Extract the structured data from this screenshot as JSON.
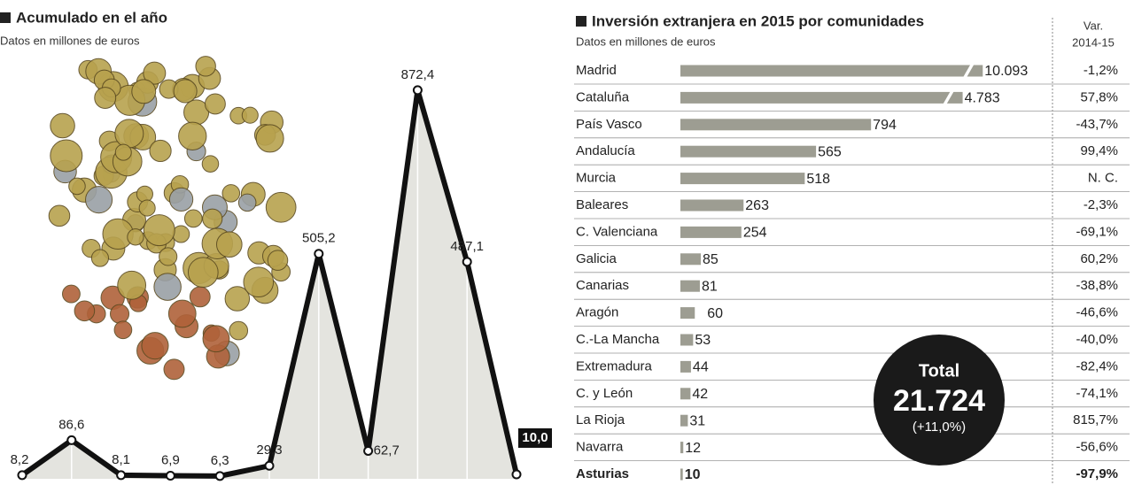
{
  "chart_data": [
    {
      "type": "line",
      "title": "Acumulado en el año",
      "subtitle": "Datos en millones de euros",
      "categories": [
        null,
        null,
        null,
        null,
        null,
        null,
        null,
        null,
        null,
        null,
        null
      ],
      "values": [
        8.2,
        86.6,
        8.1,
        6.9,
        6.3,
        29.3,
        505.2,
        62.7,
        872.4,
        487.1,
        10.0
      ],
      "value_labels": [
        "8,2",
        "86,6",
        "8,1",
        "6,9",
        "6,3",
        "29,3",
        "505,2",
        "62,7",
        "872,4",
        "487,1",
        "10,0"
      ],
      "ylim": [
        0,
        900
      ],
      "color": "#111111",
      "area_color": "#e4e4df",
      "grid": true
    },
    {
      "type": "hbar",
      "title": "Inversión extranjera en 2015 por comunidades",
      "subtitle": "Datos en millones de euros",
      "categories": [
        "Madrid",
        "Cataluña",
        "País Vasco",
        "Andalucía",
        "Murcia",
        "Baleares",
        "C. Valenciana",
        "Galicia",
        "Canarias",
        "Aragón",
        "C.-La Mancha",
        "Extremadura",
        "C. y León",
        "La Rioja",
        "Navarra",
        "Asturias"
      ],
      "values": [
        10093,
        4783,
        794,
        565,
        518,
        263,
        254,
        85,
        81,
        60,
        53,
        44,
        42,
        31,
        12,
        10
      ],
      "value_labels": [
        "10.093",
        "4.783",
        "794",
        "565",
        "518",
        "263",
        "254",
        "85",
        "81",
        "60",
        "53",
        "44",
        "42",
        "31",
        "12",
        "10"
      ],
      "var_title": [
        "Var.",
        "2014-15"
      ],
      "var_labels": [
        "-1,2%",
        "57,8%",
        "-43,7%",
        "99,4%",
        "N. C.",
        "-2,3%",
        "-69,1%",
        "60,2%",
        "-38,8%",
        "-46,6%",
        "-40,0%",
        "-82,4%",
        "-74,1%",
        "815,7%",
        "-56,6%",
        "-97,9%"
      ],
      "xlim": [
        0,
        1000
      ],
      "axis_break": true,
      "color": "#9d9d92",
      "highlight_index": 15,
      "total": {
        "title": "Total",
        "value": "21.724",
        "change": "(+11,0%)"
      }
    }
  ]
}
